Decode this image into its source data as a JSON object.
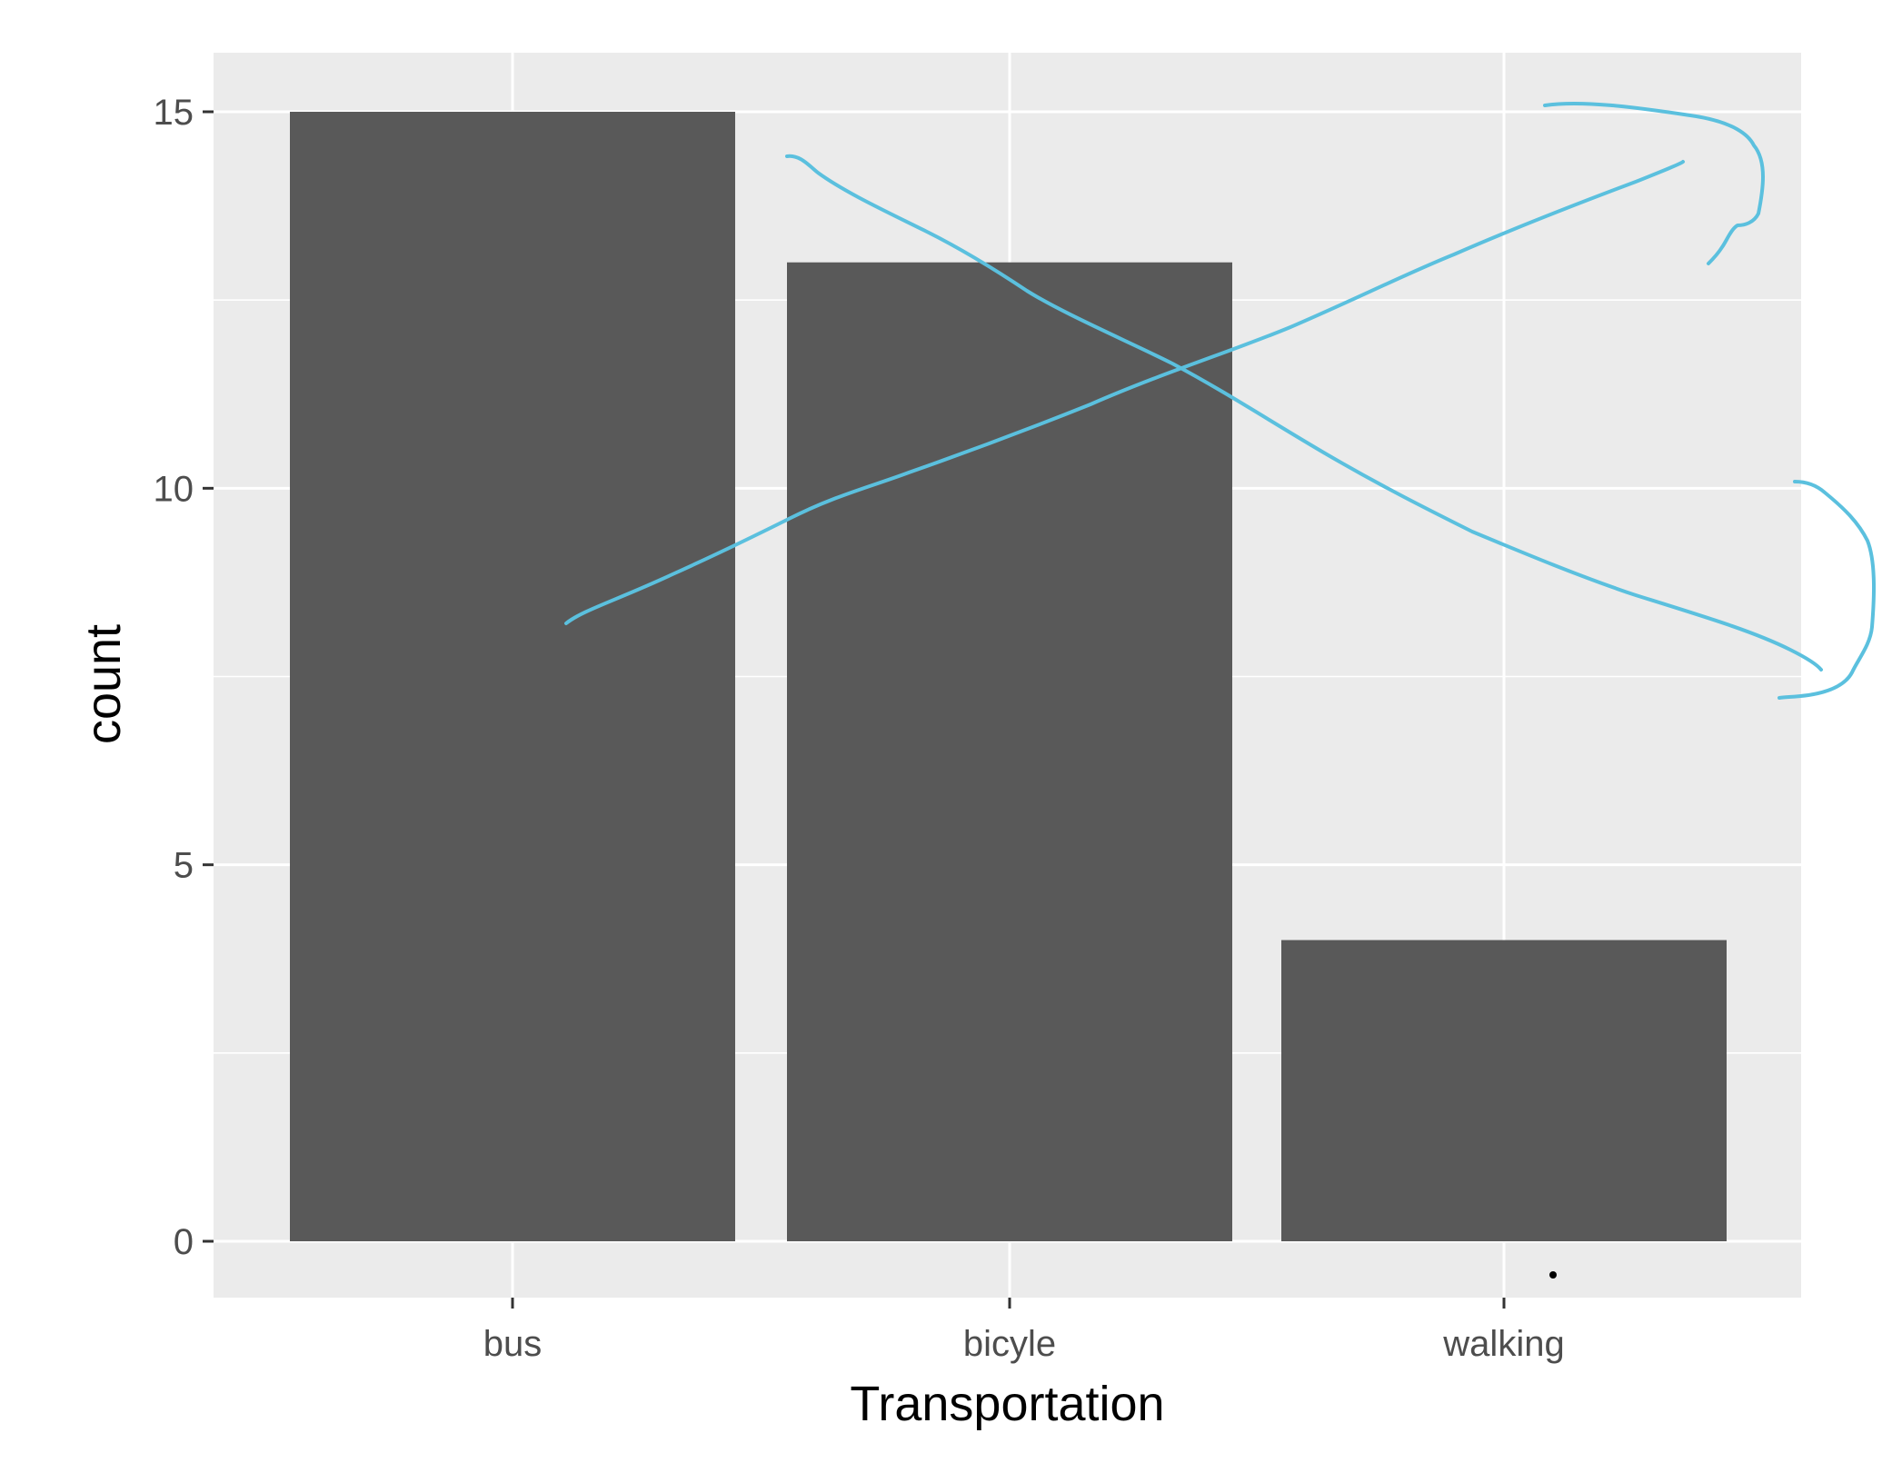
{
  "chart_data": {
    "type": "bar",
    "categories": [
      "bus",
      "bicyle",
      "walking"
    ],
    "values": [
      15,
      13,
      4
    ],
    "title": "",
    "xlabel": "Transportation",
    "ylabel": "count",
    "ylim": [
      0,
      15
    ],
    "y_ticks": [
      0,
      5,
      10,
      15
    ],
    "y_tick_labels": [
      "0",
      "5",
      "10",
      "15"
    ],
    "grid": true,
    "legend": "none"
  },
  "colors": {
    "panel_background": "#ebebeb",
    "grid_major": "#ffffff",
    "bar_fill": "#595959",
    "annotation_ink": "#5bc0de",
    "axis_text": "#4d4d4d"
  },
  "annotations": {
    "description": "hand-drawn cyan strokes over the chart",
    "marks": [
      "crossing-lines",
      "curly-brace-top",
      "curly-brace-middle"
    ]
  }
}
